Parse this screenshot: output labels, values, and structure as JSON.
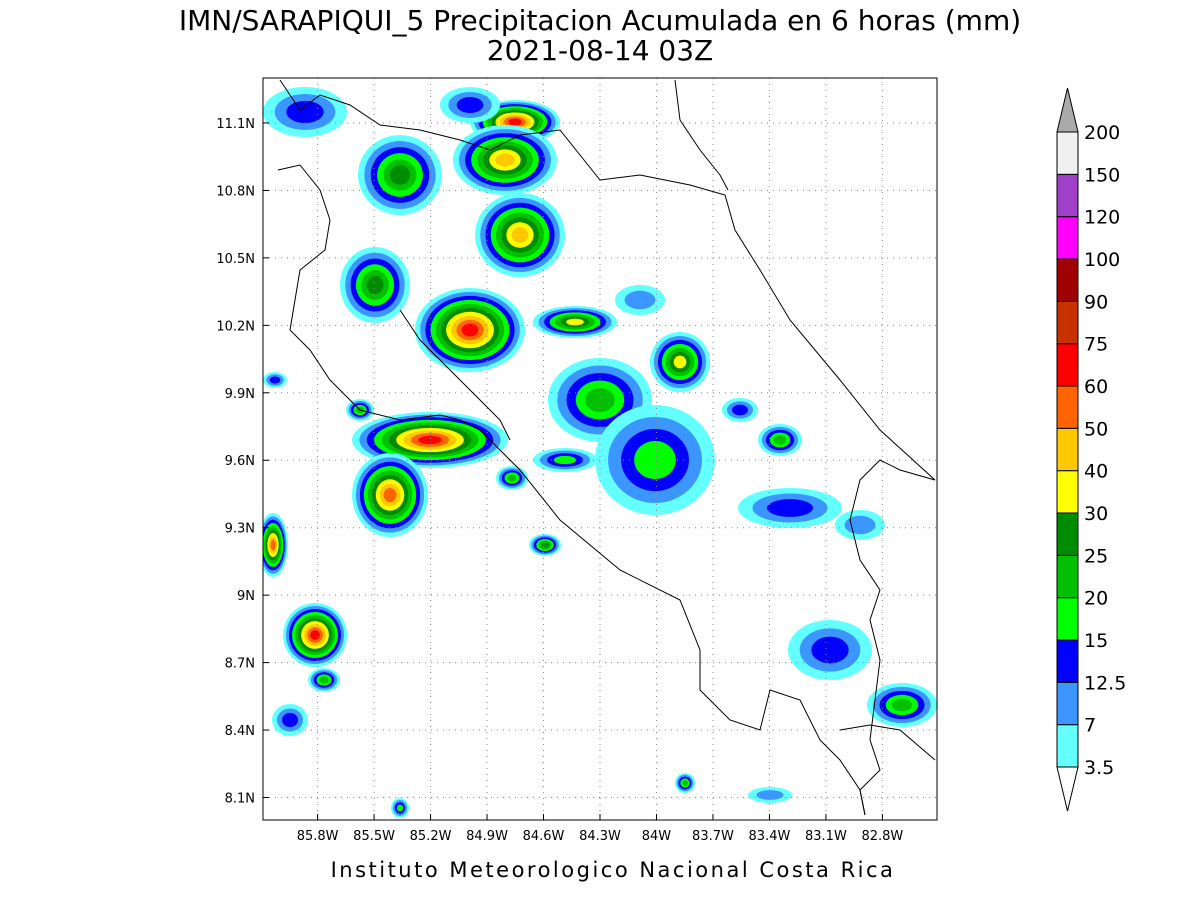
{
  "title": {
    "line1": "IMN/SARAPIQUI_5 Precipitacion Acumulada en 6 horas (mm)",
    "line2": "2021-08-14 03Z"
  },
  "map": {
    "xlim": [
      -86.09,
      -82.51
    ],
    "ylim": [
      8.0,
      11.3
    ],
    "xticks": [
      {
        "value": -85.8,
        "label": "85.8W"
      },
      {
        "value": -85.5,
        "label": "85.5W"
      },
      {
        "value": -85.2,
        "label": "85.2W"
      },
      {
        "value": -84.9,
        "label": "84.9W"
      },
      {
        "value": -84.6,
        "label": "84.6W"
      },
      {
        "value": -84.3,
        "label": "84.3W"
      },
      {
        "value": -84.0,
        "label": "84W"
      },
      {
        "value": -83.7,
        "label": "83.7W"
      },
      {
        "value": -83.4,
        "label": "83.4W"
      },
      {
        "value": -83.1,
        "label": "83.1W"
      },
      {
        "value": -82.8,
        "label": "82.8W"
      }
    ],
    "yticks": [
      {
        "value": 8.1,
        "label": "8.1N"
      },
      {
        "value": 8.4,
        "label": "8.4N"
      },
      {
        "value": 8.7,
        "label": "8.7N"
      },
      {
        "value": 9.0,
        "label": "9N"
      },
      {
        "value": 9.3,
        "label": "9.3N"
      },
      {
        "value": 9.6,
        "label": "9.6N"
      },
      {
        "value": 9.9,
        "label": "9.9N"
      },
      {
        "value": 10.2,
        "label": "10.2N"
      },
      {
        "value": 10.5,
        "label": "10.5N"
      },
      {
        "value": 10.8,
        "label": "10.8N"
      },
      {
        "value": 11.1,
        "label": "11.1N"
      }
    ],
    "grid": true
  },
  "colorbar": {
    "levels": [
      3.5,
      7,
      12.5,
      15,
      20,
      25,
      30,
      40,
      50,
      60,
      75,
      90,
      100,
      120,
      150,
      200
    ],
    "colors": [
      "#64ffff",
      "#3c96ff",
      "#0000ff",
      "#00ff00",
      "#00c000",
      "#008c00",
      "#ffff00",
      "#ffc800",
      "#ff6400",
      "#ff0000",
      "#c83200",
      "#a00000",
      "#ff00ff",
      "#a040c8",
      "#f0f0f0"
    ],
    "under_color": "#ffffff",
    "over_color": "#aaaaaa"
  },
  "footer": "Instituto Meteorologico Nacional Costa Rica"
}
